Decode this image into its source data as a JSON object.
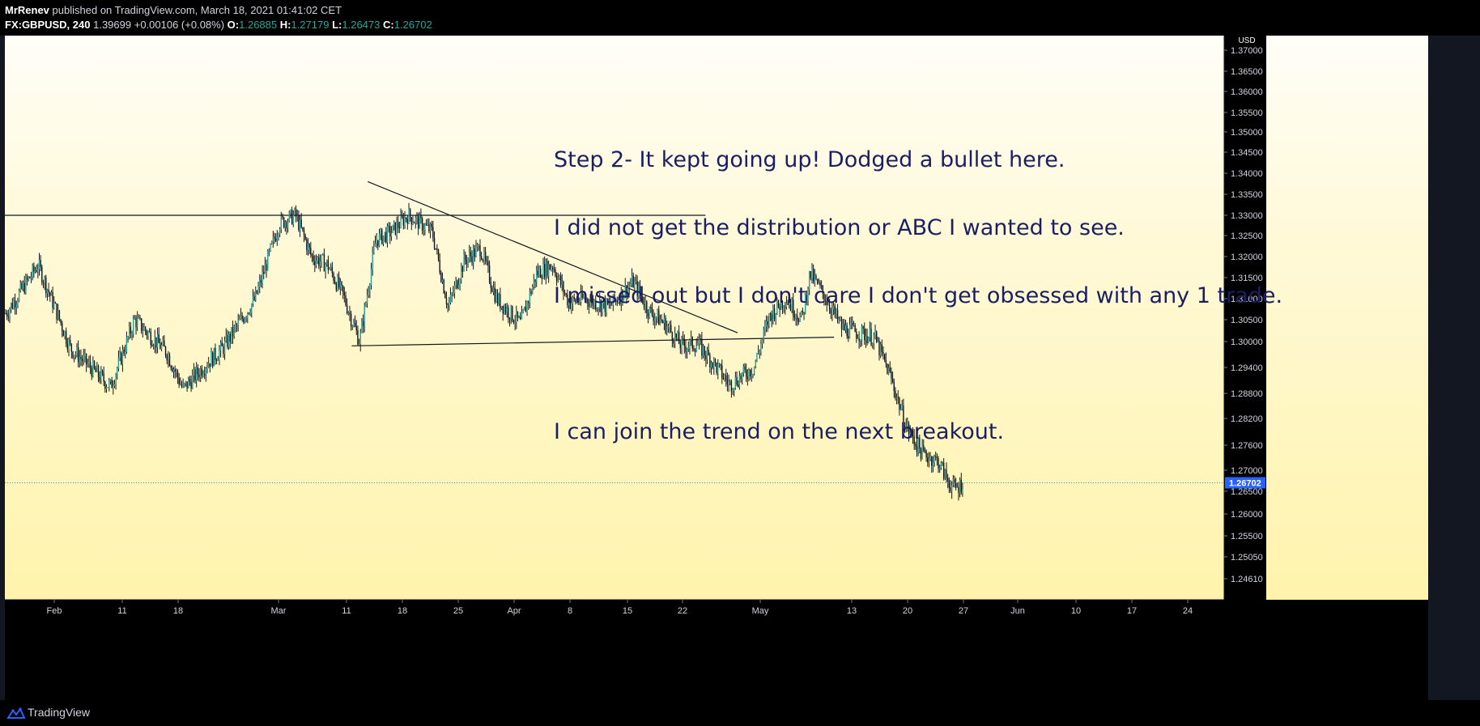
{
  "header": {
    "author": "MrRenev",
    "published_text": "published on TradingView.com, March 18, 2021 01:41:02 CET",
    "symbol": "FX:GBPUSD, 240",
    "last": "1.39699",
    "change": "+0.00106 (+0.08%)",
    "open_label": "O:",
    "open": "1.26885",
    "high_label": "H:",
    "high": "1.27179",
    "low_label": "L:",
    "low": "1.26473",
    "close_label": "C:",
    "close": "1.26702"
  },
  "annotation": {
    "lines": [
      "Step 2- It kept going up! Dodged a bullet here.",
      "I did not get the distribution or ABC I wanted to see.",
      "I missed out but I don't care I don't get obsessed with any 1 trade.",
      "",
      "I can join the trend on the next breakout."
    ]
  },
  "footer": {
    "brand": "TradingView"
  },
  "colors": {
    "up_candle": "#26a69a",
    "down_candle": "#131722",
    "text_annotation": "#1a1f63",
    "price_label_bg": "#2962ff",
    "current_price_line": "#26a69a",
    "axis_bg": "#000000",
    "grid": false
  },
  "chart_data": {
    "type": "candlestick",
    "currency": "USD",
    "y_ticks": [
      "1.37000",
      "1.36500",
      "1.36000",
      "1.35500",
      "1.35000",
      "1.34500",
      "1.34000",
      "1.33500",
      "1.33000",
      "1.32500",
      "1.32000",
      "1.31500",
      "1.31000",
      "1.30500",
      "1.30000",
      "1.29400",
      "1.28800",
      "1.28200",
      "1.27600",
      "1.27000",
      "1.26500",
      "1.26000",
      "1.25500",
      "1.25050",
      "1.24610"
    ],
    "x_ticks": [
      "Feb",
      "11",
      "18",
      "Mar",
      "11",
      "18",
      "25",
      "Apr",
      "8",
      "15",
      "22",
      "May",
      "13",
      "20",
      "27",
      "Jun",
      "10",
      "17",
      "24"
    ],
    "current_price": "1.26702",
    "ylim": [
      1.2461,
      1.37
    ],
    "price_path": [
      {
        "date": "2020-01-28",
        "price": 1.3065
      },
      {
        "date": "2020-02-01",
        "price": 1.318
      },
      {
        "date": "2020-02-05",
        "price": 1.2985
      },
      {
        "date": "2020-02-10",
        "price": 1.2895
      },
      {
        "date": "2020-02-13",
        "price": 1.305
      },
      {
        "date": "2020-02-17",
        "price": 1.2975
      },
      {
        "date": "2020-02-19",
        "price": 1.289
      },
      {
        "date": "2020-02-22",
        "price": 1.295
      },
      {
        "date": "2020-02-24",
        "price": 1.2985
      },
      {
        "date": "2020-02-28",
        "price": 1.31
      },
      {
        "date": "2020-03-02",
        "price": 1.328
      },
      {
        "date": "2020-03-04",
        "price": 1.33
      },
      {
        "date": "2020-03-06",
        "price": 1.32
      },
      {
        "date": "2020-03-08",
        "price": 1.318
      },
      {
        "date": "2020-03-10",
        "price": 1.3105
      },
      {
        "date": "2020-03-11",
        "price": 1.305
      },
      {
        "date": "2020-03-12",
        "price": 1.3
      },
      {
        "date": "2020-03-14",
        "price": 1.324
      },
      {
        "date": "2020-03-16",
        "price": 1.326
      },
      {
        "date": "2020-03-18",
        "price": 1.33
      },
      {
        "date": "2020-03-21",
        "price": 1.326
      },
      {
        "date": "2020-03-23",
        "price": 1.308
      },
      {
        "date": "2020-03-25",
        "price": 1.319
      },
      {
        "date": "2020-03-27",
        "price": 1.322
      },
      {
        "date": "2020-03-29",
        "price": 1.31
      },
      {
        "date": "2020-04-01",
        "price": 1.304
      },
      {
        "date": "2020-04-03",
        "price": 1.316
      },
      {
        "date": "2020-04-05",
        "price": 1.318
      },
      {
        "date": "2020-04-07",
        "price": 1.309
      },
      {
        "date": "2020-04-09",
        "price": 1.31
      },
      {
        "date": "2020-04-12",
        "price": 1.308
      },
      {
        "date": "2020-04-15",
        "price": 1.314
      },
      {
        "date": "2020-04-17",
        "price": 1.307
      },
      {
        "date": "2020-04-19",
        "price": 1.304
      },
      {
        "date": "2020-04-21",
        "price": 1.299
      },
      {
        "date": "2020-04-23",
        "price": 1.2995
      },
      {
        "date": "2020-04-25",
        "price": 1.295
      },
      {
        "date": "2020-04-27",
        "price": 1.29
      },
      {
        "date": "2020-04-30",
        "price": 1.294
      },
      {
        "date": "2020-05-02",
        "price": 1.306
      },
      {
        "date": "2020-05-04",
        "price": 1.31
      },
      {
        "date": "2020-05-06",
        "price": 1.305
      },
      {
        "date": "2020-05-07",
        "price": 1.316
      },
      {
        "date": "2020-05-09",
        "price": 1.31
      },
      {
        "date": "2020-05-11",
        "price": 1.303
      },
      {
        "date": "2020-05-13",
        "price": 1.302
      },
      {
        "date": "2020-05-15",
        "price": 1.301
      },
      {
        "date": "2020-05-17",
        "price": 1.292
      },
      {
        "date": "2020-05-19",
        "price": 1.28
      },
      {
        "date": "2020-05-21",
        "price": 1.274
      },
      {
        "date": "2020-05-23",
        "price": 1.272
      },
      {
        "date": "2020-05-24",
        "price": 1.268
      },
      {
        "date": "2020-05-25",
        "price": 1.2655
      },
      {
        "date": "2020-05-26",
        "price": 1.267
      }
    ],
    "lines": [
      {
        "name": "horizontal-resistance",
        "from": {
          "date": "2020-01-27",
          "price": 1.33
        },
        "to": {
          "date": "2020-04-24",
          "price": 1.33
        }
      },
      {
        "name": "descending-trendline",
        "from": {
          "date": "2020-03-13",
          "price": 1.338
        },
        "to": {
          "date": "2020-04-28",
          "price": 1.302
        }
      },
      {
        "name": "ascending-trendline",
        "from": {
          "date": "2020-03-11",
          "price": 1.299
        },
        "to": {
          "date": "2020-05-10",
          "price": 1.301
        }
      }
    ]
  }
}
